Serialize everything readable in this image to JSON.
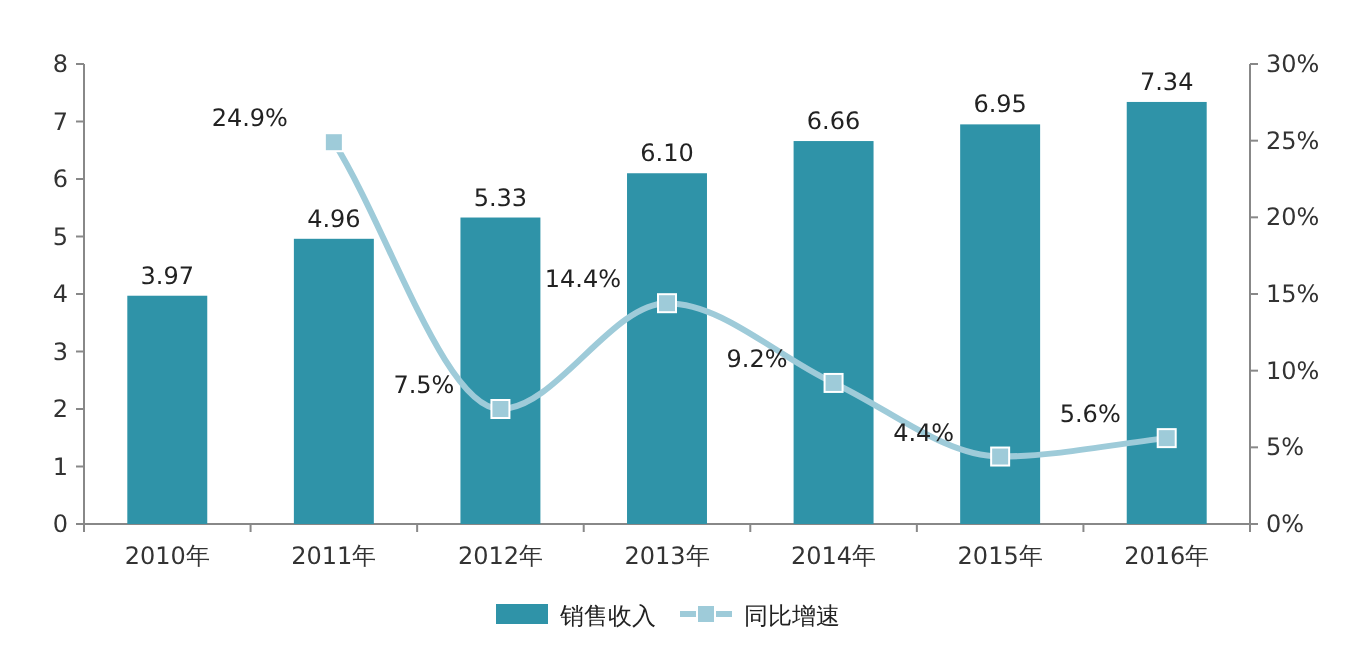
{
  "chart_data": {
    "type": "bar",
    "categories": [
      "2010年",
      "2011年",
      "2012年",
      "2013年",
      "2014年",
      "2015年",
      "2016年"
    ],
    "series": [
      {
        "name": "销售收入",
        "color": "#2f93a8",
        "values": [
          3.97,
          4.96,
          5.33,
          6.1,
          6.66,
          6.95,
          7.34
        ],
        "value_labels": [
          "3.97",
          "4.96",
          "5.33",
          "6.10",
          "6.66",
          "6.95",
          "7.34"
        ]
      },
      {
        "name": "同比增速",
        "type": "line",
        "axis": "y2",
        "color": "#9ecbd9",
        "marker": "square",
        "values": [
          null,
          24.9,
          7.5,
          14.4,
          9.2,
          4.4,
          5.6
        ],
        "value_labels": [
          null,
          "24.9%",
          "7.5%",
          "14.4%",
          "9.2%",
          "4.4%",
          "5.6%"
        ]
      }
    ],
    "ylim": [
      0,
      8
    ],
    "yticks": [
      0,
      1,
      2,
      3,
      4,
      5,
      6,
      7,
      8
    ],
    "y2lim": [
      0,
      30
    ],
    "y2ticks": [
      {
        "value": 0,
        "label": "0%"
      },
      {
        "value": 5,
        "label": "5%"
      },
      {
        "value": 10,
        "label": "10%"
      },
      {
        "value": 15,
        "label": "15%"
      },
      {
        "value": 20,
        "label": "20%"
      },
      {
        "value": 25,
        "label": "25%"
      },
      {
        "value": 30,
        "label": "30%"
      }
    ],
    "legend": "bottom"
  }
}
